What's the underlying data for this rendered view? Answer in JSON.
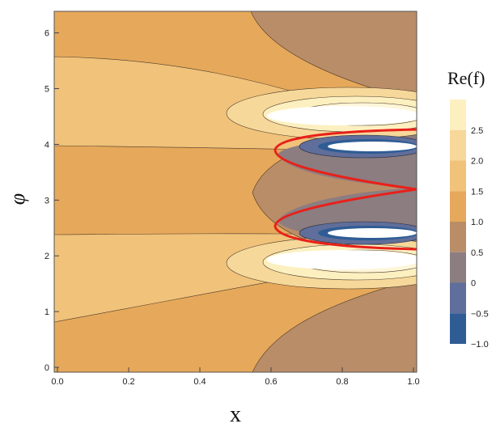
{
  "chart_data": {
    "type": "contour",
    "xlabel": "x",
    "ylabel": "φ",
    "xlim": [
      0.0,
      1.0
    ],
    "ylim": [
      0,
      6.3
    ],
    "xticks": [
      "0.0",
      "0.2",
      "0.4",
      "0.6",
      "0.8",
      "1.0"
    ],
    "yticks": [
      "0",
      "1",
      "2",
      "3",
      "4",
      "5",
      "6"
    ],
    "legend": {
      "title": "Re(f)",
      "placement": "right",
      "levels": [
        {
          "label": "2.5",
          "color": "#fdf0c0"
        },
        {
          "label": "2.0",
          "color": "#f6d89a"
        },
        {
          "label": "1.5",
          "color": "#f0c27a"
        },
        {
          "label": "1.0",
          "color": "#e6a85a"
        },
        {
          "label": "0.5",
          "color": "#b98d68"
        },
        {
          "label": "0",
          "color": "#8c7d80"
        },
        {
          "label": "−0.5",
          "color": "#5f6e9a"
        },
        {
          "label": "−1.0",
          "color": "#2f5c94"
        }
      ]
    },
    "highlight_contour": {
      "color": "#e8201a",
      "value": 0
    },
    "colors": {
      "orange_main": "#e6a85a",
      "orange_light": "#f0c27a",
      "peach": "#f6d89a",
      "cream": "#fdf0c0",
      "brown": "#b98d68",
      "grey": "#8c7d80",
      "slate": "#5f6e9a",
      "blue": "#2f5c94"
    }
  }
}
